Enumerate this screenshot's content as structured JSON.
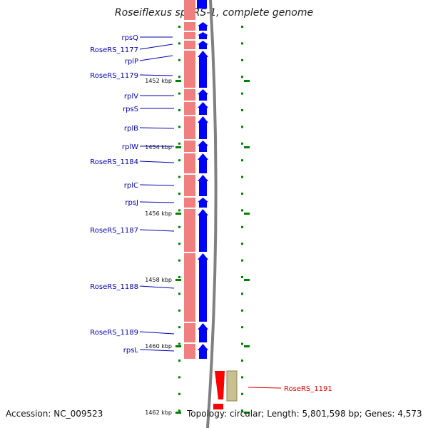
{
  "title": "Roseiflexus sp. RS-1, complete genome",
  "footer": {
    "accession": "Accession: NC_009523",
    "topology": "Topology: circular; Length: 5,801,598 bp; Genes: 4,573"
  },
  "scale_labels": [
    "1452 kbp",
    "1454 kbp",
    "1456 kbp",
    "1458 kbp",
    "1460 kbp",
    "1462 kbp"
  ],
  "genes": [
    {
      "name": "rpsQ",
      "color": "#0000b0"
    },
    {
      "name": "RoseRS_1177",
      "color": "#0000b0"
    },
    {
      "name": "rplP",
      "color": "#0000b0"
    },
    {
      "name": "RoseRS_1179",
      "color": "#0000b0"
    },
    {
      "name": "rplV",
      "color": "#0000b0"
    },
    {
      "name": "rpsS",
      "color": "#0000b0"
    },
    {
      "name": "rplB",
      "color": "#0000b0"
    },
    {
      "name": "rplW",
      "color": "#0000b0"
    },
    {
      "name": "RoseRS_1184",
      "color": "#0000b0"
    },
    {
      "name": "rplC",
      "color": "#0000b0"
    },
    {
      "name": "rpsJ",
      "color": "#0000b0"
    },
    {
      "name": "RoseRS_1187",
      "color": "#0000b0"
    },
    {
      "name": "RoseRS_1188",
      "color": "#0000b0"
    },
    {
      "name": "RoseRS_1189",
      "color": "#0000b0"
    },
    {
      "name": "rpsL",
      "color": "#0000b0"
    },
    {
      "name": "RoseRS_1191",
      "color": "#e00000"
    }
  ],
  "colors": {
    "cds_track": "#f08080",
    "gene_arrow": "#0000ff",
    "highlight_gene": "#ff0000",
    "rna_gene": "#c8c090",
    "backbone": "#808080",
    "tick": "#008000"
  }
}
